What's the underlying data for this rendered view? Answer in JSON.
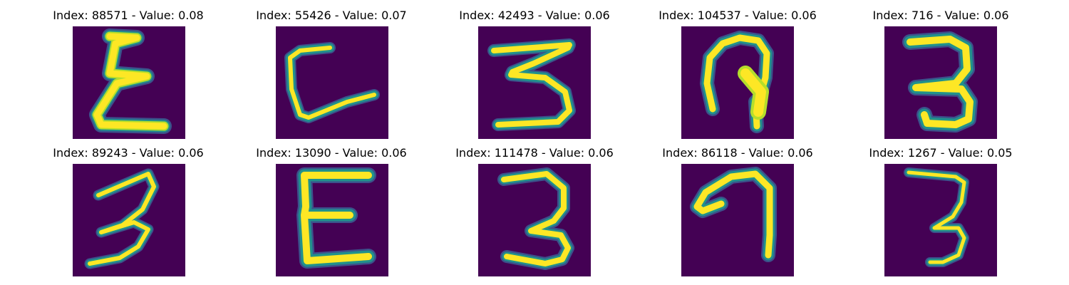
{
  "colors": {
    "background": "#440154",
    "stroke_core": "#fde725",
    "stroke_edge": "#b5de2b",
    "stroke_outer": "#21918c",
    "stroke_halo": "#3b528b"
  },
  "panels": [
    {
      "label": "Index: 88571 - Value: 0.08",
      "glyph": "rotated-3-sigma"
    },
    {
      "label": "Index: 55426 - Value: 0.07",
      "glyph": "hook-stroke"
    },
    {
      "label": "Index: 42493 - Value: 0.06",
      "glyph": "three"
    },
    {
      "label": "Index: 104537 - Value: 0.06",
      "glyph": "curled-hook"
    },
    {
      "label": "Index: 716 - Value: 0.06",
      "glyph": "three"
    },
    {
      "label": "Index: 89243 - Value: 0.06",
      "glyph": "three"
    },
    {
      "label": "Index: 13090 - Value: 0.06",
      "glyph": "rotated-3-e"
    },
    {
      "label": "Index: 111478 - Value: 0.06",
      "glyph": "three"
    },
    {
      "label": "Index: 86118 - Value: 0.06",
      "glyph": "curled-hook"
    },
    {
      "label": "Index: 1267 - Value: 0.05",
      "glyph": "three"
    }
  ]
}
